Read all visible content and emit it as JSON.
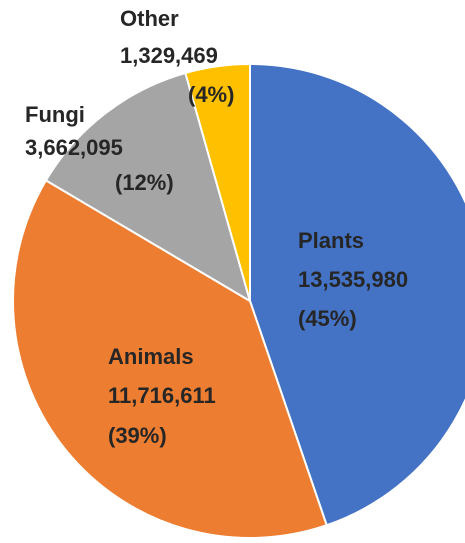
{
  "chart_data": {
    "type": "pie",
    "categories": [
      "Plants",
      "Animals",
      "Fungi",
      "Other"
    ],
    "values": [
      13535980,
      11716611,
      3662095,
      1329469
    ],
    "value_labels": [
      "13,535,980",
      "11,716,611",
      "3,662,095",
      "1,329,469"
    ],
    "percentages": [
      45,
      39,
      12,
      4
    ],
    "percentage_labels": [
      "(45%)",
      "(39%)",
      "(12%)",
      "(4%)"
    ],
    "colors": [
      "#4472c4",
      "#ed7d31",
      "#a5a5a5",
      "#ffc000"
    ]
  }
}
